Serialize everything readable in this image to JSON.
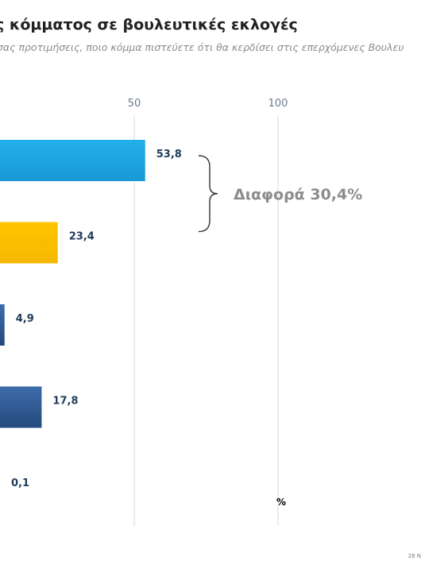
{
  "header": {
    "title": "ς κόμματος σε βουλευτικές εκλογές",
    "subtitle": "σας προτιμήσεις, ποιο κόμμα πιστεύετε ότι θα κερδίσει στις επερχόμενες Βουλευ",
    "subtitle_cont": ")"
  },
  "footer": {
    "date_fragment": "28 Ν"
  },
  "chart_data": {
    "type": "bar",
    "orientation": "horizontal",
    "x_ticks": [
      50,
      100
    ],
    "x_tick_labels": [
      "50",
      "100"
    ],
    "xlim": [
      0,
      100
    ],
    "unit_label": "%",
    "grid": true,
    "bars": [
      {
        "value": 53.8,
        "label": "53,8",
        "color": "#1fa5e0"
      },
      {
        "value": 23.4,
        "label": "23,4",
        "color": "#ffc000"
      },
      {
        "value": 4.9,
        "label": "4,9",
        "color": "#2f5d9a"
      },
      {
        "value": 17.8,
        "label": "17,8",
        "color": "#2f5d9a"
      },
      {
        "value": 0.1,
        "label": "0,1",
        "color": "#2f5d9a"
      }
    ],
    "annotation": {
      "text": "Διαφορά 30,4%",
      "between": [
        0,
        1
      ]
    }
  }
}
